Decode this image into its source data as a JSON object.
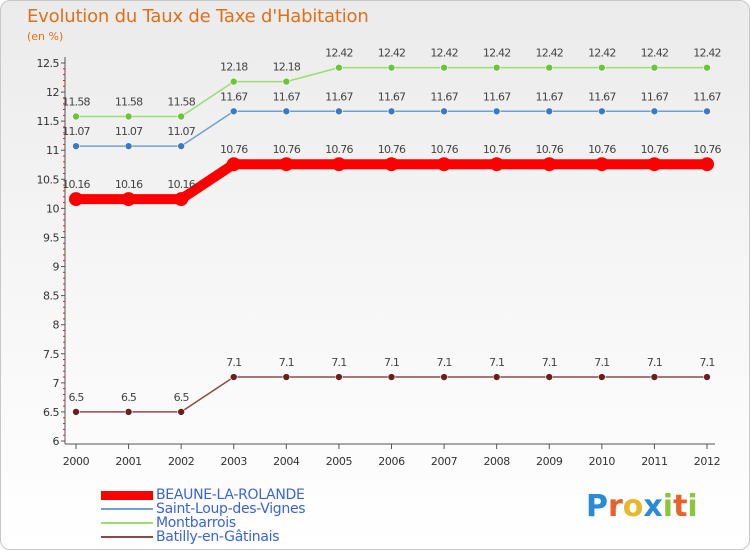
{
  "title": "Evolution du Taux de Taxe d'Habitation",
  "unit_label": "(en %)",
  "chart_data": {
    "type": "line",
    "title": "Evolution du Taux de Taxe d'Habitation",
    "ylabel": "(en %)",
    "xlabel": "",
    "x": [
      "2000",
      "2001",
      "2002",
      "2003",
      "2004",
      "2005",
      "2006",
      "2007",
      "2008",
      "2009",
      "2010",
      "2011",
      "2012"
    ],
    "ylim": [
      6,
      12.5
    ],
    "yticks": [
      "6",
      "6.5",
      "7",
      "7.5",
      "8",
      "8.5",
      "9",
      "9.5",
      "10",
      "10.5",
      "11",
      "11.5",
      "12",
      "12.5"
    ],
    "grid": false,
    "legend_position": "bottom-left",
    "series": [
      {
        "name": "BEAUNE-LA-ROLANDE",
        "color": "#ff0000",
        "values": [
          10.16,
          10.16,
          10.16,
          10.76,
          10.76,
          10.76,
          10.76,
          10.76,
          10.76,
          10.76,
          10.76,
          10.76,
          10.76
        ],
        "labels": [
          "10.16",
          "10.16",
          "10.16",
          "10.76",
          "10.76",
          "10.76",
          "10.76",
          "10.76",
          "10.76",
          "10.76",
          "10.76",
          "10.76",
          "10.76"
        ]
      },
      {
        "name": "Saint-Loup-des-Vignes",
        "color": "#6fa0d4",
        "values": [
          11.07,
          11.07,
          11.07,
          11.67,
          11.67,
          11.67,
          11.67,
          11.67,
          11.67,
          11.67,
          11.67,
          11.67,
          11.67
        ],
        "labels": [
          "11.07",
          "11.07",
          "11.07",
          "11.67",
          "11.67",
          "11.67",
          "11.67",
          "11.67",
          "11.67",
          "11.67",
          "11.67",
          "11.67",
          "11.67"
        ]
      },
      {
        "name": "Montbarrois",
        "color": "#9ade6e",
        "values": [
          11.58,
          11.58,
          11.58,
          12.18,
          12.18,
          12.42,
          12.42,
          12.42,
          12.42,
          12.42,
          12.42,
          12.42,
          12.42
        ],
        "labels": [
          "11.58",
          "11.58",
          "11.58",
          "12.18",
          "12.18",
          "12.42",
          "12.42",
          "12.42",
          "12.42",
          "12.42",
          "12.42",
          "12.42",
          "12.42"
        ]
      },
      {
        "name": "Batilly-en-Gâtinais",
        "color": "#8b4a4a",
        "values": [
          6.5,
          6.5,
          6.5,
          7.1,
          7.1,
          7.1,
          7.1,
          7.1,
          7.1,
          7.1,
          7.1,
          7.1,
          7.1
        ],
        "labels": [
          "6.5",
          "6.5",
          "6.5",
          "7.1",
          "7.1",
          "7.1",
          "7.1",
          "7.1",
          "7.1",
          "7.1",
          "7.1",
          "7.1",
          "7.1"
        ]
      }
    ]
  },
  "legend": [
    {
      "label": "BEAUNE-LA-ROLANDE",
      "color": "#ff0000"
    },
    {
      "label": "Saint-Loup-des-Vignes",
      "color": "#6fa0d4"
    },
    {
      "label": "Montbarrois",
      "color": "#9ade6e"
    },
    {
      "label": "Batilly-en-Gâtinais",
      "color": "#8b4a4a"
    }
  ],
  "logo": {
    "letters": [
      "P",
      "r",
      "o",
      "x",
      "i",
      "t",
      "i"
    ],
    "colors": [
      "#2a8ad8",
      "#e8602a",
      "#e8b82a",
      "#2a8ad8",
      "#8cc43c",
      "#e8602a",
      "#8cc43c"
    ]
  }
}
